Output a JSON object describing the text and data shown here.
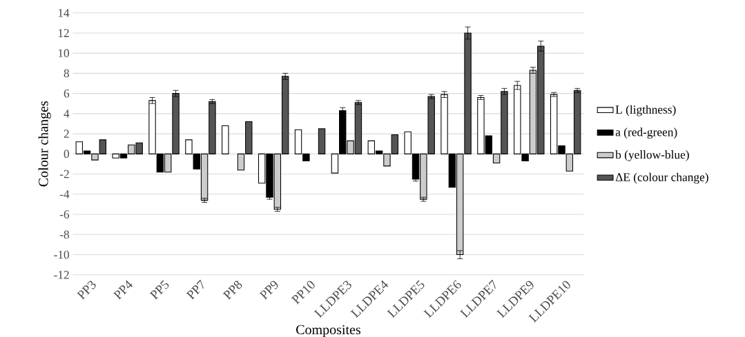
{
  "chart_data": {
    "type": "bar",
    "xlabel": "Composites",
    "ylabel": "Colour changes",
    "categories": [
      "PP3",
      "PP4",
      "PP5",
      "PP7",
      "PP8",
      "PP9",
      "PP10",
      "LLDPE3",
      "LLDPE4",
      "LLDPE5",
      "LLDPE6",
      "LLDPE7",
      "LLDPE9",
      "LLDPE10"
    ],
    "series": [
      {
        "name": "L (ligthness)",
        "color": "#ffffff",
        "values": [
          1.2,
          -0.4,
          5.3,
          1.4,
          2.8,
          -2.9,
          2.4,
          -1.9,
          1.3,
          2.2,
          5.9,
          5.6,
          6.8,
          5.9
        ],
        "errors": [
          null,
          null,
          0.3,
          null,
          null,
          null,
          null,
          null,
          null,
          null,
          0.3,
          0.2,
          0.4,
          0.2
        ]
      },
      {
        "name": "a (red-green)",
        "color": "#000000",
        "values": [
          0.3,
          -0.4,
          -1.8,
          -1.5,
          null,
          -4.3,
          -0.7,
          4.3,
          0.3,
          -2.5,
          -3.3,
          1.8,
          -0.7,
          0.8
        ],
        "errors": [
          null,
          null,
          null,
          null,
          null,
          0.2,
          null,
          0.3,
          null,
          0.2,
          null,
          null,
          null,
          null
        ]
      },
      {
        "name": "b (yellow-blue)",
        "color": "#cccccc",
        "values": [
          -0.6,
          0.9,
          -1.8,
          -4.6,
          -1.6,
          -5.5,
          null,
          1.3,
          -1.2,
          -4.5,
          -10.0,
          -0.9,
          8.3,
          -1.7
        ],
        "errors": [
          null,
          null,
          null,
          0.2,
          null,
          0.2,
          null,
          null,
          null,
          0.2,
          0.4,
          null,
          0.3,
          null
        ]
      },
      {
        "name": "ΔE (colour change)",
        "color": "#555555",
        "values": [
          1.4,
          1.1,
          6.0,
          5.2,
          3.2,
          7.7,
          2.5,
          5.1,
          1.9,
          5.7,
          12.0,
          6.2,
          10.7,
          6.3
        ],
        "errors": [
          null,
          null,
          0.3,
          0.2,
          null,
          0.3,
          null,
          0.2,
          null,
          0.2,
          0.6,
          0.3,
          0.5,
          0.2
        ]
      }
    ],
    "ylim": [
      -12,
      14
    ],
    "yticks": [
      -12,
      -10,
      -8,
      -6,
      -4,
      -2,
      0,
      2,
      4,
      6,
      8,
      10,
      12,
      14
    ],
    "grid": "y",
    "legend": "right"
  }
}
